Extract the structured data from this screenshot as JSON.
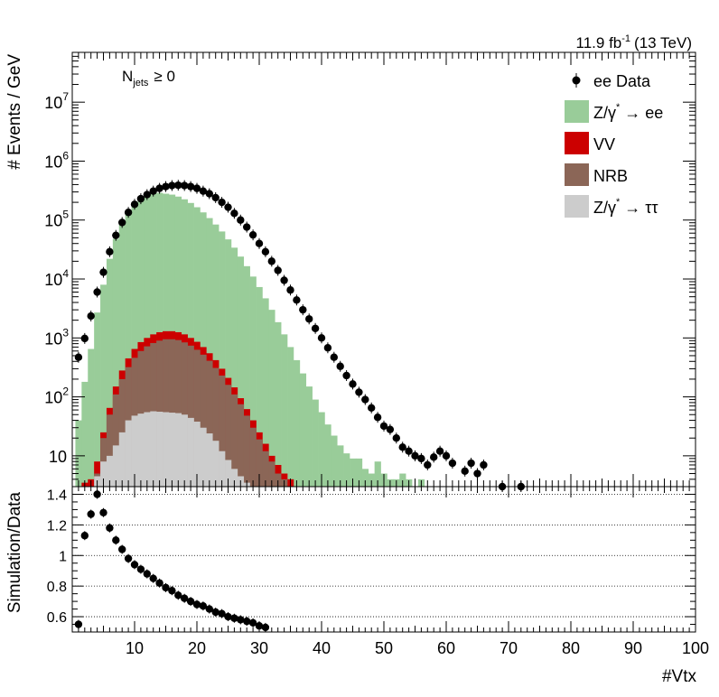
{
  "lumi_label": "11.9 fb",
  "lumi_exp": "-1",
  "lumi_energy": "(13 TeV)",
  "jets_label_main": "N",
  "jets_label_sub": "jets",
  "jets_label_cond": "≥ 0",
  "chart_data": [
    {
      "type": "bar",
      "panel": "upper",
      "ylabel": "# Events / GeV",
      "yscale": "log",
      "ylim": [
        3,
        70000000
      ],
      "xlim": [
        0,
        100
      ],
      "y_ticks": [
        {
          "v": 10,
          "label": "10"
        },
        {
          "v": 100,
          "label": "10",
          "exp": "2"
        },
        {
          "v": 1000,
          "label": "10",
          "exp": "3"
        },
        {
          "v": 10000,
          "label": "10",
          "exp": "4"
        },
        {
          "v": 100000,
          "label": "10",
          "exp": "5"
        },
        {
          "v": 1000000,
          "label": "10",
          "exp": "6"
        },
        {
          "v": 10000000,
          "label": "10",
          "exp": "7"
        }
      ],
      "legend_position": "top-right",
      "legend": [
        {
          "kind": "marker",
          "label": "ee Data",
          "color": "#000000"
        },
        {
          "kind": "box",
          "label": "Z/γ",
          "sup": "*",
          "tail": " → ee",
          "color": "#99cc99"
        },
        {
          "kind": "box",
          "label": "VV",
          "color": "#cc0000"
        },
        {
          "kind": "box",
          "label": "NRB",
          "color": "#8b6657"
        },
        {
          "kind": "box",
          "label": "Z/γ",
          "sup": "*",
          "tail": " → ττ",
          "color": "#cccccc"
        }
      ],
      "stack_colors": {
        "zee": "#99cc99",
        "vv": "#cc0000",
        "nrb": "#8b6657",
        "ztt": "#cccccc"
      },
      "stack_totals": {
        "x": [
          1,
          2,
          3,
          4,
          5,
          6,
          7,
          8,
          9,
          10,
          11,
          12,
          13,
          14,
          15,
          16,
          17,
          18,
          19,
          20,
          21,
          22,
          23,
          24,
          25,
          26,
          27,
          28,
          29,
          30,
          31,
          32,
          33,
          34,
          35,
          36,
          37,
          38,
          39,
          40,
          41,
          42,
          43,
          44,
          45,
          46,
          47,
          48,
          49,
          50,
          51,
          52,
          53,
          54,
          55,
          56
        ],
        "zee": [
          40,
          180,
          650,
          2700,
          8000,
          22000,
          48000,
          90000,
          140000,
          190000,
          230000,
          260000,
          280000,
          290000,
          280000,
          270000,
          250000,
          225000,
          195000,
          165000,
          135000,
          108000,
          84000,
          64000,
          47000,
          34000,
          24000,
          16500,
          11000,
          7300,
          4700,
          3000,
          1850,
          1150,
          700,
          420,
          250,
          150,
          90,
          55,
          34,
          22,
          15,
          11,
          9,
          9,
          6,
          5,
          8,
          5,
          4,
          4,
          5,
          4,
          3,
          4
        ],
        "vv": [
          3,
          3.5,
          4,
          8,
          25,
          65,
          150,
          280,
          450,
          650,
          850,
          1000,
          1150,
          1250,
          1300,
          1300,
          1250,
          1150,
          1000,
          860,
          700,
          550,
          420,
          300,
          210,
          145,
          95,
          62,
          40,
          25,
          16,
          10,
          7,
          5,
          4,
          3
        ],
        "nrb": [
          1,
          1,
          3,
          5,
          20,
          50,
          110,
          200,
          320,
          460,
          600,
          720,
          820,
          900,
          950,
          950,
          920,
          840,
          740,
          630,
          520,
          410,
          310,
          230,
          160,
          110,
          75,
          48,
          30,
          19,
          12,
          8,
          5,
          4,
          3,
          2.5
        ],
        "ztt": [
          1,
          1,
          1,
          4.5,
          8,
          10,
          15,
          25,
          40,
          48,
          52,
          55,
          57,
          56,
          55,
          54,
          53,
          50,
          44,
          38,
          30,
          24,
          18,
          12,
          8.5,
          6,
          4.5,
          3.5,
          3
        ]
      },
      "series": [
        {
          "name": "ee Data",
          "x": [
            1,
            2,
            3,
            4,
            5,
            6,
            7,
            8,
            9,
            10,
            11,
            12,
            13,
            14,
            15,
            16,
            17,
            18,
            19,
            20,
            21,
            22,
            23,
            24,
            25,
            26,
            27,
            28,
            29,
            30,
            31,
            32,
            33,
            34,
            35,
            36,
            37,
            38,
            39,
            40,
            41,
            42,
            43,
            44,
            45,
            46,
            47,
            48,
            49,
            50,
            51,
            52,
            53,
            54,
            55,
            56,
            57,
            58,
            59,
            60,
            61,
            63,
            64,
            65,
            66,
            69,
            72
          ],
          "y": [
            470,
            980,
            2350,
            6000,
            13000,
            29000,
            55000,
            91000,
            135000,
            185000,
            230000,
            270000,
            310000,
            345000,
            370000,
            385000,
            390000,
            385000,
            370000,
            345000,
            310000,
            280000,
            240000,
            200000,
            165000,
            130000,
            100000,
            76000,
            56000,
            40000,
            29000,
            20000,
            14000,
            9500,
            6500,
            4400,
            3000,
            2100,
            1450,
            1000,
            680,
            470,
            330,
            230,
            165,
            120,
            90,
            65,
            45,
            32,
            28,
            20,
            14,
            12,
            10,
            9,
            7,
            9.5,
            12,
            10,
            7.5,
            5.5,
            7.5,
            5,
            7,
            3,
            3
          ]
        }
      ]
    },
    {
      "type": "scatter",
      "panel": "lower",
      "ylabel": "Simulation/Data",
      "xlabel": "#Vtx",
      "ylim": [
        0.5,
        1.45
      ],
      "xlim": [
        0,
        100
      ],
      "x_ticks": [
        10,
        20,
        30,
        40,
        50,
        60,
        70,
        80,
        90,
        100
      ],
      "y_ticks": [
        {
          "v": 0.6,
          "label": "0.6"
        },
        {
          "v": 0.8,
          "label": "0.8"
        },
        {
          "v": 1,
          "label": "1"
        },
        {
          "v": 1.2,
          "label": "1.2"
        },
        {
          "v": 1.4,
          "label": "1.4"
        }
      ],
      "gridlines": [
        0.6,
        0.8,
        1.0,
        1.2,
        1.4
      ],
      "series": [
        {
          "name": "ratio",
          "x": [
            1,
            2,
            3,
            4,
            5,
            6,
            7,
            8,
            9,
            10,
            11,
            12,
            13,
            14,
            15,
            16,
            17,
            18,
            19,
            20,
            21,
            22,
            23,
            24,
            25,
            26,
            27,
            28,
            29,
            30,
            31
          ],
          "y": [
            0.55,
            1.13,
            1.27,
            1.4,
            1.28,
            1.18,
            1.1,
            1.04,
            0.98,
            0.94,
            0.91,
            0.88,
            0.85,
            0.82,
            0.79,
            0.77,
            0.74,
            0.72,
            0.7,
            0.68,
            0.67,
            0.65,
            0.63,
            0.62,
            0.6,
            0.59,
            0.58,
            0.57,
            0.56,
            0.54,
            0.53
          ]
        }
      ]
    }
  ]
}
